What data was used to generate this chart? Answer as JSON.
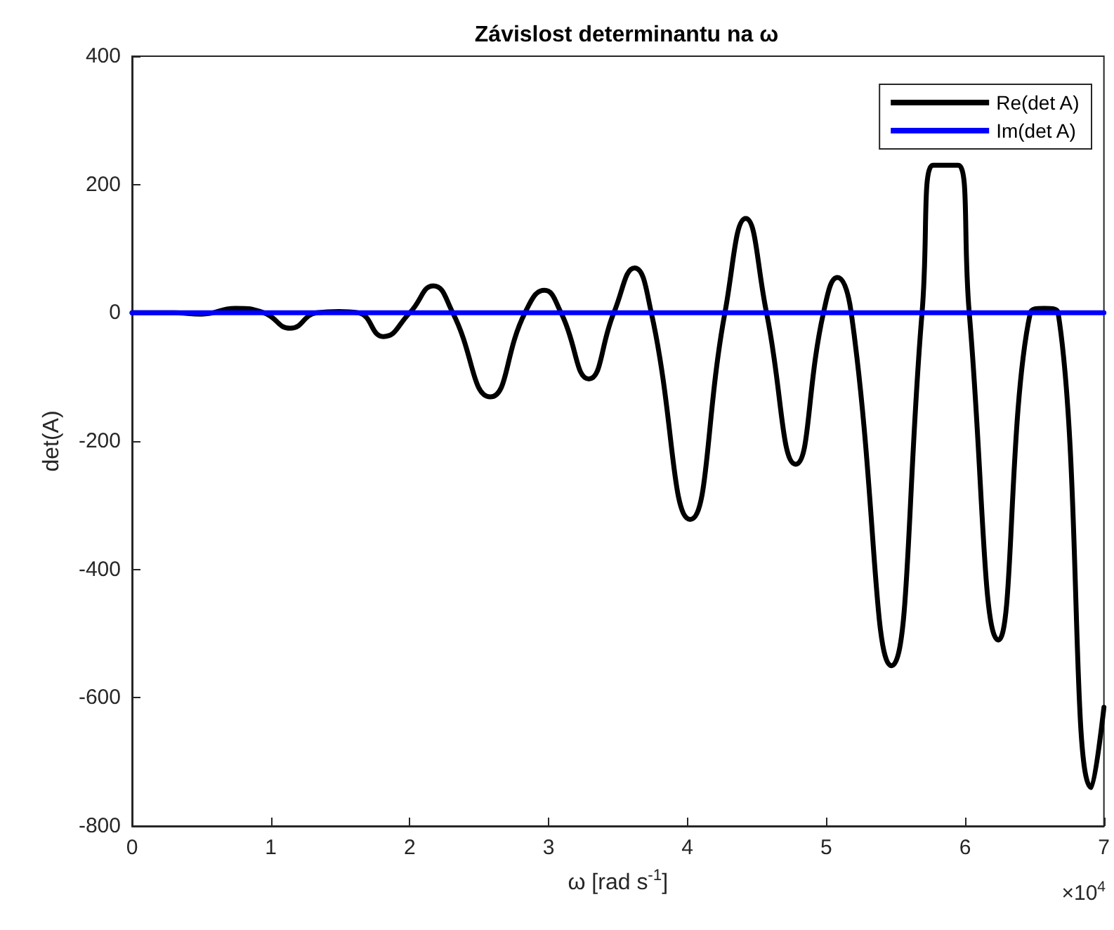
{
  "chart_data": {
    "type": "line",
    "title": "Závislost determinantu na ω",
    "xlabel": "ω [rad s$^{-1}$]",
    "ylabel": "det(A)",
    "annotations": [
      "×10$^{4}$"
    ],
    "xlim": [
      0,
      7
    ],
    "xticks": [
      0,
      1,
      2,
      3,
      4,
      5,
      6,
      7
    ],
    "ylim": [
      -800,
      400
    ],
    "yticks": [
      -800,
      -600,
      -400,
      -200,
      0,
      200,
      400
    ],
    "grid": false,
    "legend": "top right",
    "marker": "none",
    "line_style": "solid",
    "series": [
      {
        "name": "Re(det A)",
        "color": "#000000",
        "x": [
          0,
          0.3,
          0.5,
          0.746,
          0.95,
          1.14,
          1.33,
          1.49,
          1.63,
          1.81,
          2,
          2.17,
          2.31,
          2.58,
          2.83,
          2.97,
          3.09,
          3.29,
          3.47,
          3.62,
          3.74,
          4.02,
          4.27,
          4.42,
          4.57,
          4.78,
          4.98,
          5.08,
          5.18,
          5.47,
          5.69,
          5.77,
          5.95,
          6.03,
          6.24,
          6.47,
          6.57,
          6.67,
          6.91,
          7
        ],
        "values": [
          0,
          0,
          -2,
          7,
          0,
          -24,
          0,
          2,
          0,
          -37,
          0,
          42,
          0,
          -131,
          0,
          35,
          0,
          -103,
          0,
          70,
          0,
          -322,
          0,
          147,
          0,
          -236,
          0,
          55,
          0,
          -550,
          0,
          230,
          230,
          0,
          -510,
          0,
          7,
          0,
          -740,
          -615
        ]
      },
      {
        "name": "Im(det A)",
        "color": "#0000ff",
        "x": [
          0,
          7
        ],
        "values": [
          0,
          0
        ]
      }
    ]
  }
}
